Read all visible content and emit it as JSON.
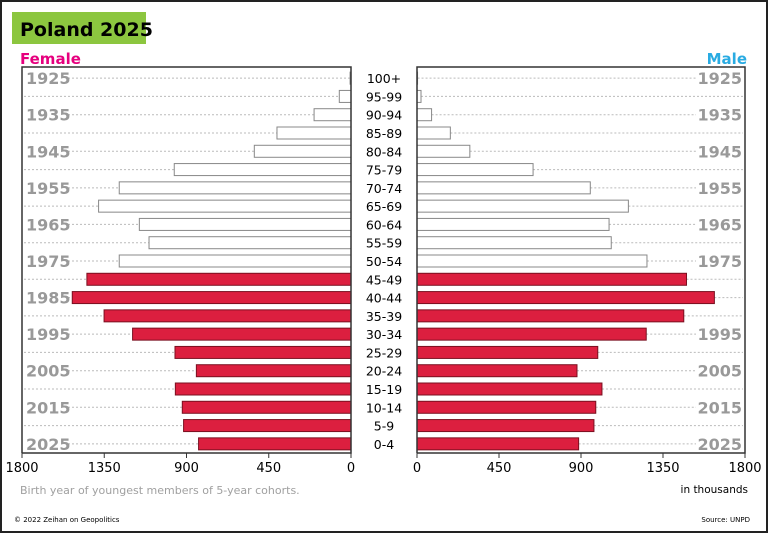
{
  "title": "Poland 2025",
  "colors": {
    "title_bg": "#8cc63f",
    "female": "#e6007e",
    "male": "#29abe2",
    "bar_fill": "#dc1f3f",
    "bar_outline": "#888888",
    "year_label": "#999999"
  },
  "chart_data": {
    "type": "bar",
    "orientation": "horizontal population pyramid",
    "categories": [
      "100+",
      "95-99",
      "90-94",
      "85-89",
      "80-84",
      "75-79",
      "70-74",
      "65-69",
      "60-64",
      "55-59",
      "50-54",
      "45-49",
      "40-44",
      "35-39",
      "30-34",
      "25-29",
      "20-24",
      "15-19",
      "10-14",
      "5-9",
      "0-4"
    ],
    "highlighted_from_category": "45-49",
    "series": [
      {
        "name": "Female",
        "side": "left",
        "values": [
          5,
          64,
          202,
          405,
          529,
          967,
          1268,
          1381,
          1158,
          1105,
          1268,
          1445,
          1525,
          1351,
          1195,
          963,
          846,
          961,
          923,
          916,
          834
        ]
      },
      {
        "name": "Male",
        "side": "right",
        "values": [
          3,
          22,
          80,
          183,
          290,
          637,
          951,
          1160,
          1054,
          1066,
          1262,
          1479,
          1632,
          1464,
          1258,
          992,
          878,
          1015,
          981,
          971,
          887
        ]
      }
    ],
    "xlim": [
      0,
      1800
    ],
    "x_ticks_left": [
      "1800",
      "1350",
      "900",
      "450",
      "0"
    ],
    "x_ticks_right": [
      "0",
      "450",
      "900",
      "1350",
      "1800"
    ],
    "tick_values": [
      0,
      450,
      900,
      1350,
      1800
    ],
    "year_labels_left": [
      "1925",
      "",
      "1935",
      "",
      "1945",
      "",
      "1955",
      "",
      "1965",
      "",
      "1975",
      "",
      "1985",
      "",
      "1995",
      "",
      "2005",
      "",
      "2015",
      "",
      "2025"
    ],
    "year_labels_right": [
      "1925",
      "",
      "1935",
      "",
      "1945",
      "",
      "1955",
      "",
      "1965",
      "",
      "1975",
      "",
      "",
      "",
      "1995",
      "",
      "2005",
      "",
      "2015",
      "",
      "2025"
    ],
    "xlabel_left": "Birth year of youngest members of 5-year cohorts.",
    "xlabel_right": "in thousands",
    "grid": "dotted horizontal"
  },
  "footer": {
    "copyright": "© 2022 Zeihan on Geopolitics",
    "source": "Source: UNPD"
  }
}
